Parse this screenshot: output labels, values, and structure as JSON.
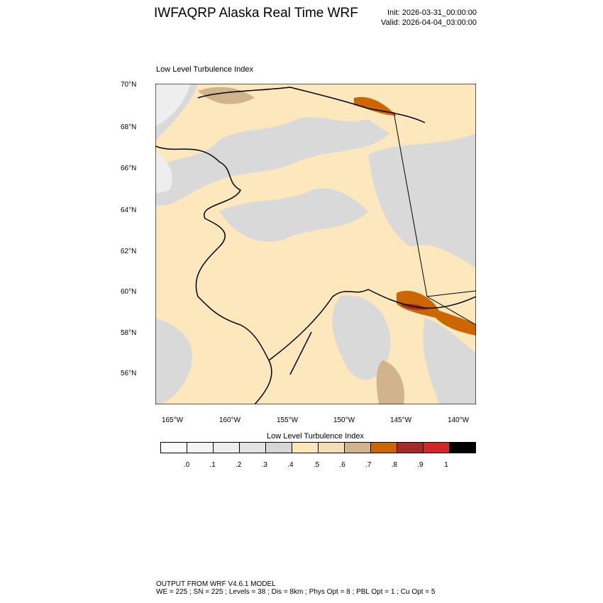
{
  "header": {
    "title": "IWFAQRP Alaska Real Time WRF",
    "init": "Init: 2026-03-31_00:00:00",
    "valid": "Valid: 2026-04-04_03:00:00"
  },
  "map": {
    "subtitle": "Low Level Turbulence Index",
    "lat_labels": [
      "70°N",
      "68°N",
      "66°N",
      "64°N",
      "62°N",
      "60°N",
      "58°N",
      "56°N"
    ],
    "lon_labels": [
      "165°W",
      "160°W",
      "155°W",
      "150°W",
      "145°W",
      "140°W"
    ],
    "colors": {
      "base": "#fde8bd",
      "gray": "#d9d9d9",
      "light_gray": "#eeeeee",
      "tan": "#d2b48c",
      "orange": "#cc6600",
      "dark_red": "#a52a2a"
    }
  },
  "colorbar": {
    "title": "Low Level Turbulence Index",
    "colors": [
      "#fafafa",
      "#f4f4f4",
      "#eeeeee",
      "#e3e3e3",
      "#d6d6d6",
      "#ffe6b8",
      "#f5deb3",
      "#d2b48c",
      "#cc6600",
      "#a52a2a",
      "#d02828",
      "#000000"
    ],
    "labels": [
      ".0",
      ".1",
      ".2",
      ".3",
      ".4",
      ".5",
      ".6",
      ".7",
      ".8",
      ".9",
      "1"
    ]
  },
  "footer": {
    "line1": "OUTPUT FROM WRF V4.6.1 MODEL",
    "line2": "WE = 225 ; SN = 225 ; Levels = 38 ; Dis = 8km ; Phys Opt = 8 ; PBL Opt = 1 ; Cu Opt = 5"
  }
}
